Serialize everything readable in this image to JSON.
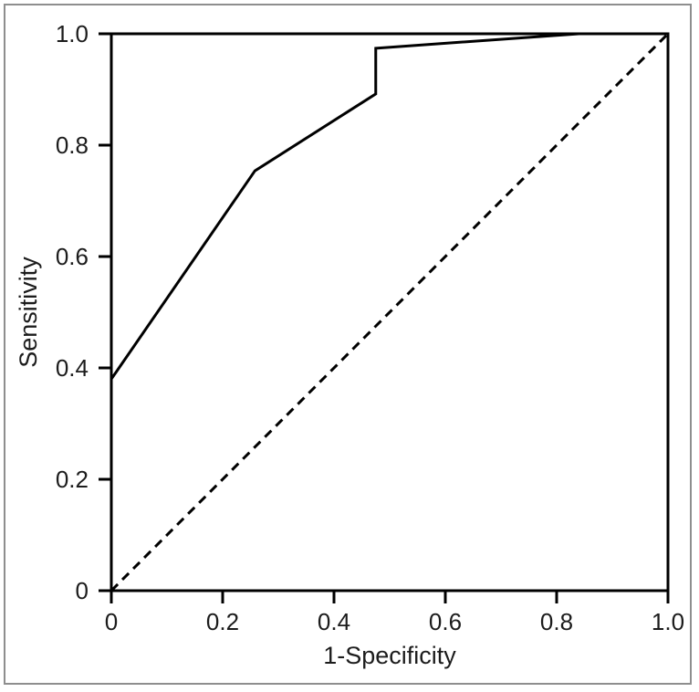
{
  "figure": {
    "background_color": "#ffffff",
    "frame_border_color": "#8e8e8e",
    "axis_color": "#000000",
    "text_color": "#1c1c1c"
  },
  "chart_data": {
    "type": "line",
    "title": "",
    "xlabel": "1-Specificity",
    "ylabel": "Sensitivity",
    "xlim": [
      0,
      1
    ],
    "ylim": [
      0,
      1
    ],
    "grid": false,
    "legend": null,
    "x_ticks": {
      "values": [
        0,
        0.2,
        0.4,
        0.6,
        0.8,
        1.0
      ],
      "labels": [
        "0",
        "0.2",
        "0.4",
        "0.6",
        "0.8",
        "1.0"
      ]
    },
    "y_ticks": {
      "values": [
        0,
        0.2,
        0.4,
        0.6,
        0.8,
        1.0
      ],
      "labels": [
        "0",
        "0.2",
        "0.4",
        "0.6",
        "0.8",
        "1.0"
      ]
    },
    "series": [
      {
        "name": "ROC curve",
        "style": "solid",
        "color": "#000000",
        "points": [
          [
            0,
            0.38
          ],
          [
            0.258,
            0.754
          ],
          [
            0.475,
            0.892
          ],
          [
            0.475,
            0.974
          ],
          [
            0.84,
            1.0
          ],
          [
            1.0,
            1.0
          ]
        ]
      },
      {
        "name": "Chance diagonal",
        "style": "dashed",
        "color": "#000000",
        "points": [
          [
            0,
            0
          ],
          [
            1.0,
            1.0
          ]
        ]
      }
    ]
  }
}
